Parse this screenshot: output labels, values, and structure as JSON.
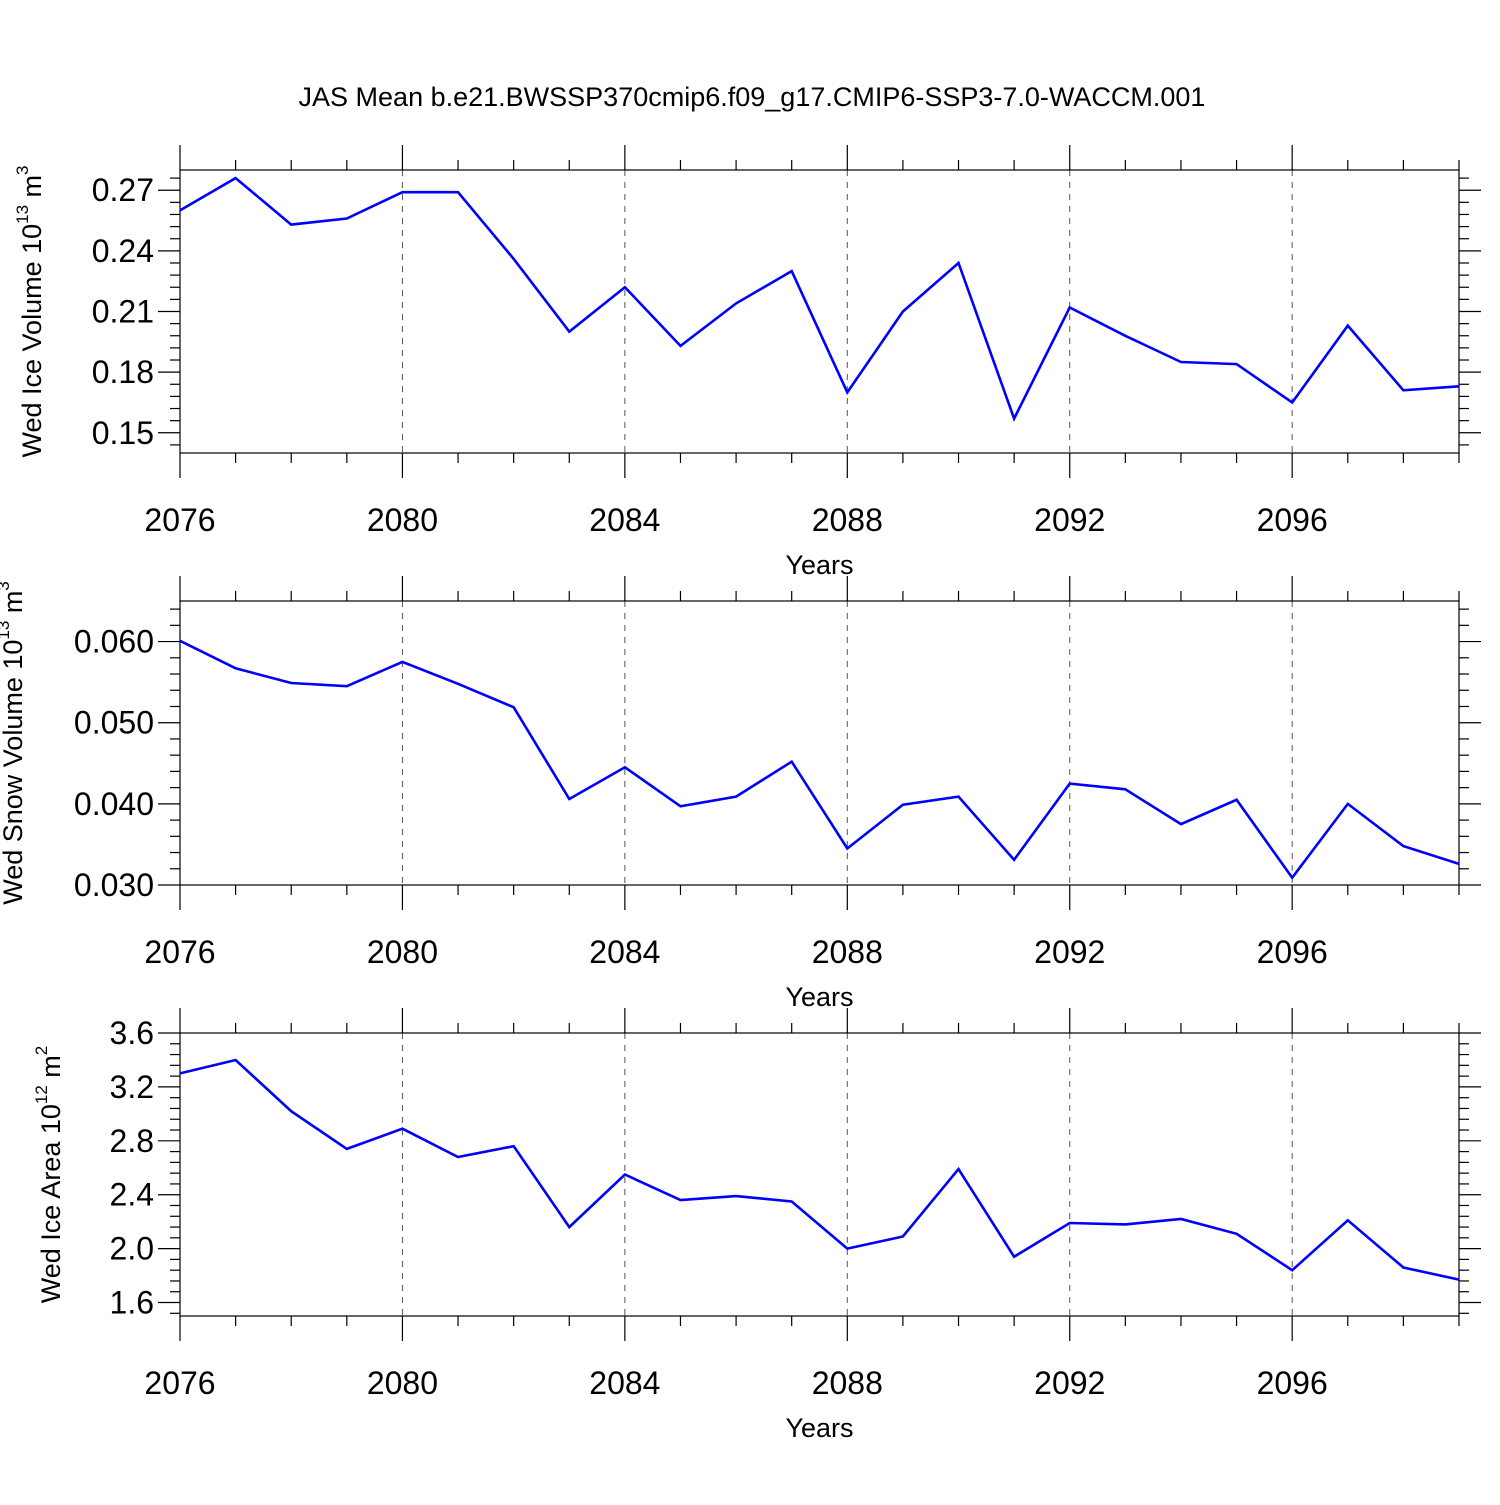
{
  "title": "JAS Mean b.e21.BWSSP370cmip6.f09_g17.CMIP6-SSP3-7.0-WACCM.001",
  "colors": {
    "line": "#0000ff",
    "axis": "#000000",
    "grid": "#555555"
  },
  "chart_data": [
    {
      "type": "line",
      "ylabel": {
        "main": "Wed Ice Volume 10",
        "sup": "13",
        "unit": " m",
        "unit_sup": "3"
      },
      "xlabel": "Years",
      "xlim": [
        2076,
        2099
      ],
      "ylim": [
        0.14,
        0.28
      ],
      "xticks": [
        "2076",
        "2080",
        "2084",
        "2088",
        "2092",
        "2096"
      ],
      "yticks": [
        "0.15",
        "0.18",
        "0.21",
        "0.24",
        "0.27"
      ],
      "grid": "vertical dashed at major x ticks",
      "series": [
        {
          "x": [
            2076,
            2077,
            2078,
            2079,
            2080,
            2081,
            2082,
            2083,
            2084,
            2085,
            2086,
            2087,
            2088,
            2089,
            2090,
            2091,
            2092,
            2093,
            2094,
            2095,
            2096,
            2097,
            2098,
            2099
          ],
          "y": [
            0.26,
            0.276,
            0.253,
            0.256,
            0.269,
            0.269,
            0.236,
            0.2,
            0.222,
            0.193,
            0.214,
            0.23,
            0.17,
            0.21,
            0.234,
            0.157,
            0.212,
            0.198,
            0.185,
            0.184,
            0.165,
            0.203,
            0.171,
            0.173
          ]
        }
      ]
    },
    {
      "type": "line",
      "ylabel": {
        "main": "Wed Snow Volume 10",
        "sup": "13",
        "unit": " m",
        "unit_sup": "3"
      },
      "xlabel": "Years",
      "xlim": [
        2076,
        2099
      ],
      "ylim": [
        0.03,
        0.065
      ],
      "xticks": [
        "2076",
        "2080",
        "2084",
        "2088",
        "2092",
        "2096"
      ],
      "yticks": [
        "0.030",
        "0.040",
        "0.050",
        "0.060"
      ],
      "grid": "vertical dashed at major x ticks",
      "series": [
        {
          "x": [
            2076,
            2077,
            2078,
            2079,
            2080,
            2081,
            2082,
            2083,
            2084,
            2085,
            2086,
            2087,
            2088,
            2089,
            2090,
            2091,
            2092,
            2093,
            2094,
            2095,
            2096,
            2097,
            2098,
            2099
          ],
          "y": [
            0.0601,
            0.0567,
            0.0549,
            0.0545,
            0.0575,
            0.0548,
            0.0519,
            0.0406,
            0.0445,
            0.0397,
            0.0409,
            0.0452,
            0.0345,
            0.0399,
            0.0409,
            0.0331,
            0.0425,
            0.0418,
            0.0375,
            0.0405,
            0.0309,
            0.04,
            0.0348,
            0.0326
          ]
        }
      ]
    },
    {
      "type": "line",
      "ylabel": {
        "main": "Wed Ice Area 10",
        "sup": "12",
        "unit": " m",
        "unit_sup": "2"
      },
      "xlabel": "Years",
      "xlim": [
        2076,
        2099
      ],
      "ylim": [
        1.5,
        3.6
      ],
      "xticks": [
        "2076",
        "2080",
        "2084",
        "2088",
        "2092",
        "2096"
      ],
      "yticks": [
        "1.6",
        "2.0",
        "2.4",
        "2.8",
        "3.2",
        "3.6"
      ],
      "grid": "vertical dashed at major x ticks",
      "series": [
        {
          "x": [
            2076,
            2077,
            2078,
            2079,
            2080,
            2081,
            2082,
            2083,
            2084,
            2085,
            2086,
            2087,
            2088,
            2089,
            2090,
            2091,
            2092,
            2093,
            2094,
            2095,
            2096,
            2097,
            2098,
            2099
          ],
          "y": [
            3.3,
            3.4,
            3.02,
            2.74,
            2.89,
            2.68,
            2.76,
            2.16,
            2.55,
            2.36,
            2.39,
            2.35,
            2.0,
            2.09,
            2.59,
            1.94,
            2.19,
            2.18,
            2.22,
            2.11,
            1.84,
            2.21,
            1.86,
            1.77
          ]
        }
      ]
    }
  ]
}
